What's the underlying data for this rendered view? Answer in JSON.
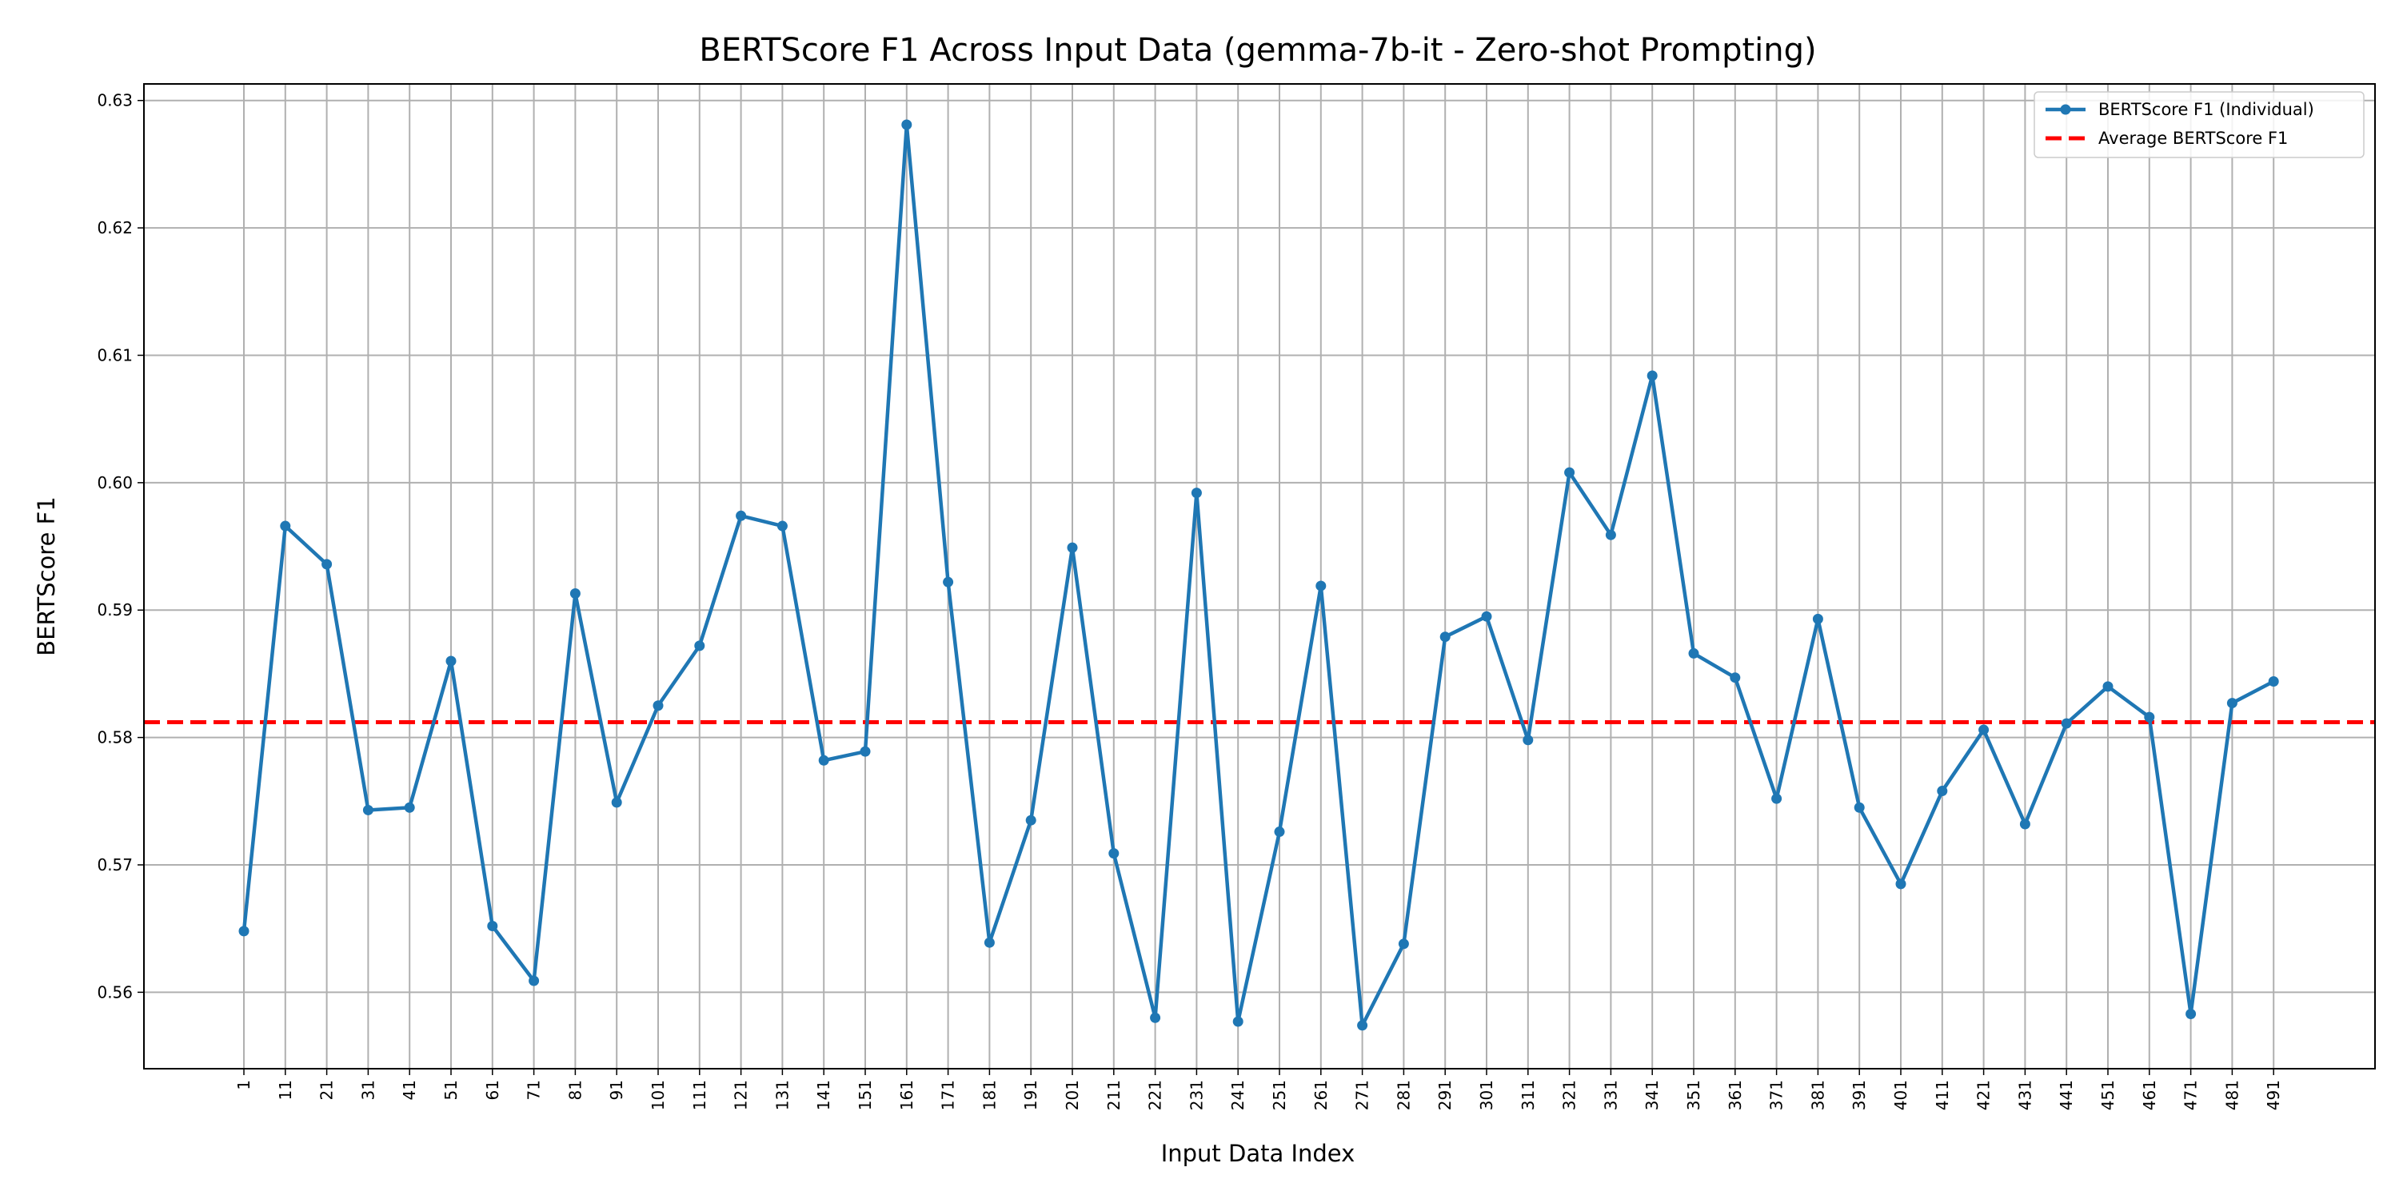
{
  "chart_data": {
    "type": "line",
    "title": "BERTScore F1 Across Input Data (gemma-7b-it - Zero-shot Prompting)",
    "xlabel": "Input Data Index",
    "ylabel": "BERTScore F1",
    "x": [
      1,
      11,
      21,
      31,
      41,
      51,
      61,
      71,
      81,
      91,
      101,
      111,
      121,
      131,
      141,
      151,
      161,
      171,
      181,
      191,
      201,
      211,
      221,
      231,
      241,
      251,
      261,
      271,
      281,
      291,
      301,
      311,
      321,
      331,
      341,
      351,
      361,
      371,
      381,
      391,
      401,
      411,
      421,
      431,
      441,
      451,
      461,
      471,
      481,
      491
    ],
    "x_tick_labels": [
      "1",
      "11",
      "21",
      "31",
      "41",
      "51",
      "61",
      "71",
      "81",
      "91",
      "101",
      "111",
      "121",
      "131",
      "141",
      "151",
      "161",
      "171",
      "181",
      "191",
      "201",
      "211",
      "221",
      "231",
      "241",
      "251",
      "261",
      "271",
      "281",
      "291",
      "301",
      "311",
      "321",
      "331",
      "341",
      "351",
      "361",
      "371",
      "381",
      "391",
      "401",
      "411",
      "421",
      "431",
      "441",
      "451",
      "461",
      "471",
      "481",
      "491"
    ],
    "y_ticks": [
      0.56,
      0.57,
      0.58,
      0.59,
      0.6,
      0.61,
      0.62,
      0.63
    ],
    "y_tick_labels": [
      "0.56",
      "0.57",
      "0.58",
      "0.59",
      "0.60",
      "0.61",
      "0.62",
      "0.63"
    ],
    "ylim": [
      0.554,
      0.6313
    ],
    "grid": true,
    "legend_position": "top-right",
    "series": [
      {
        "name": "BERTScore F1 (Individual)",
        "color": "#1f77b4",
        "style": "solid",
        "marker": "circle",
        "values": [
          0.5648,
          0.5966,
          0.5936,
          0.5743,
          0.5745,
          0.586,
          0.5652,
          0.5609,
          0.5913,
          0.5749,
          0.5825,
          0.5872,
          0.5974,
          0.5966,
          0.5782,
          0.5789,
          0.6281,
          0.5922,
          0.5639,
          0.5735,
          0.5949,
          0.5709,
          0.558,
          0.5992,
          0.5577,
          0.5726,
          0.5919,
          0.5574,
          0.5638,
          0.5879,
          0.5895,
          0.5798,
          0.6008,
          0.5959,
          0.6084,
          0.5866,
          0.5847,
          0.5752,
          0.5893,
          0.5745,
          0.5685,
          0.5758,
          0.5806,
          0.5732,
          0.5811,
          0.584,
          0.5816,
          0.5583,
          0.5827,
          0.5844
        ]
      },
      {
        "name": "Average BERTScore F1",
        "color": "#ff0000",
        "style": "dashed",
        "value": 0.5812
      }
    ]
  }
}
